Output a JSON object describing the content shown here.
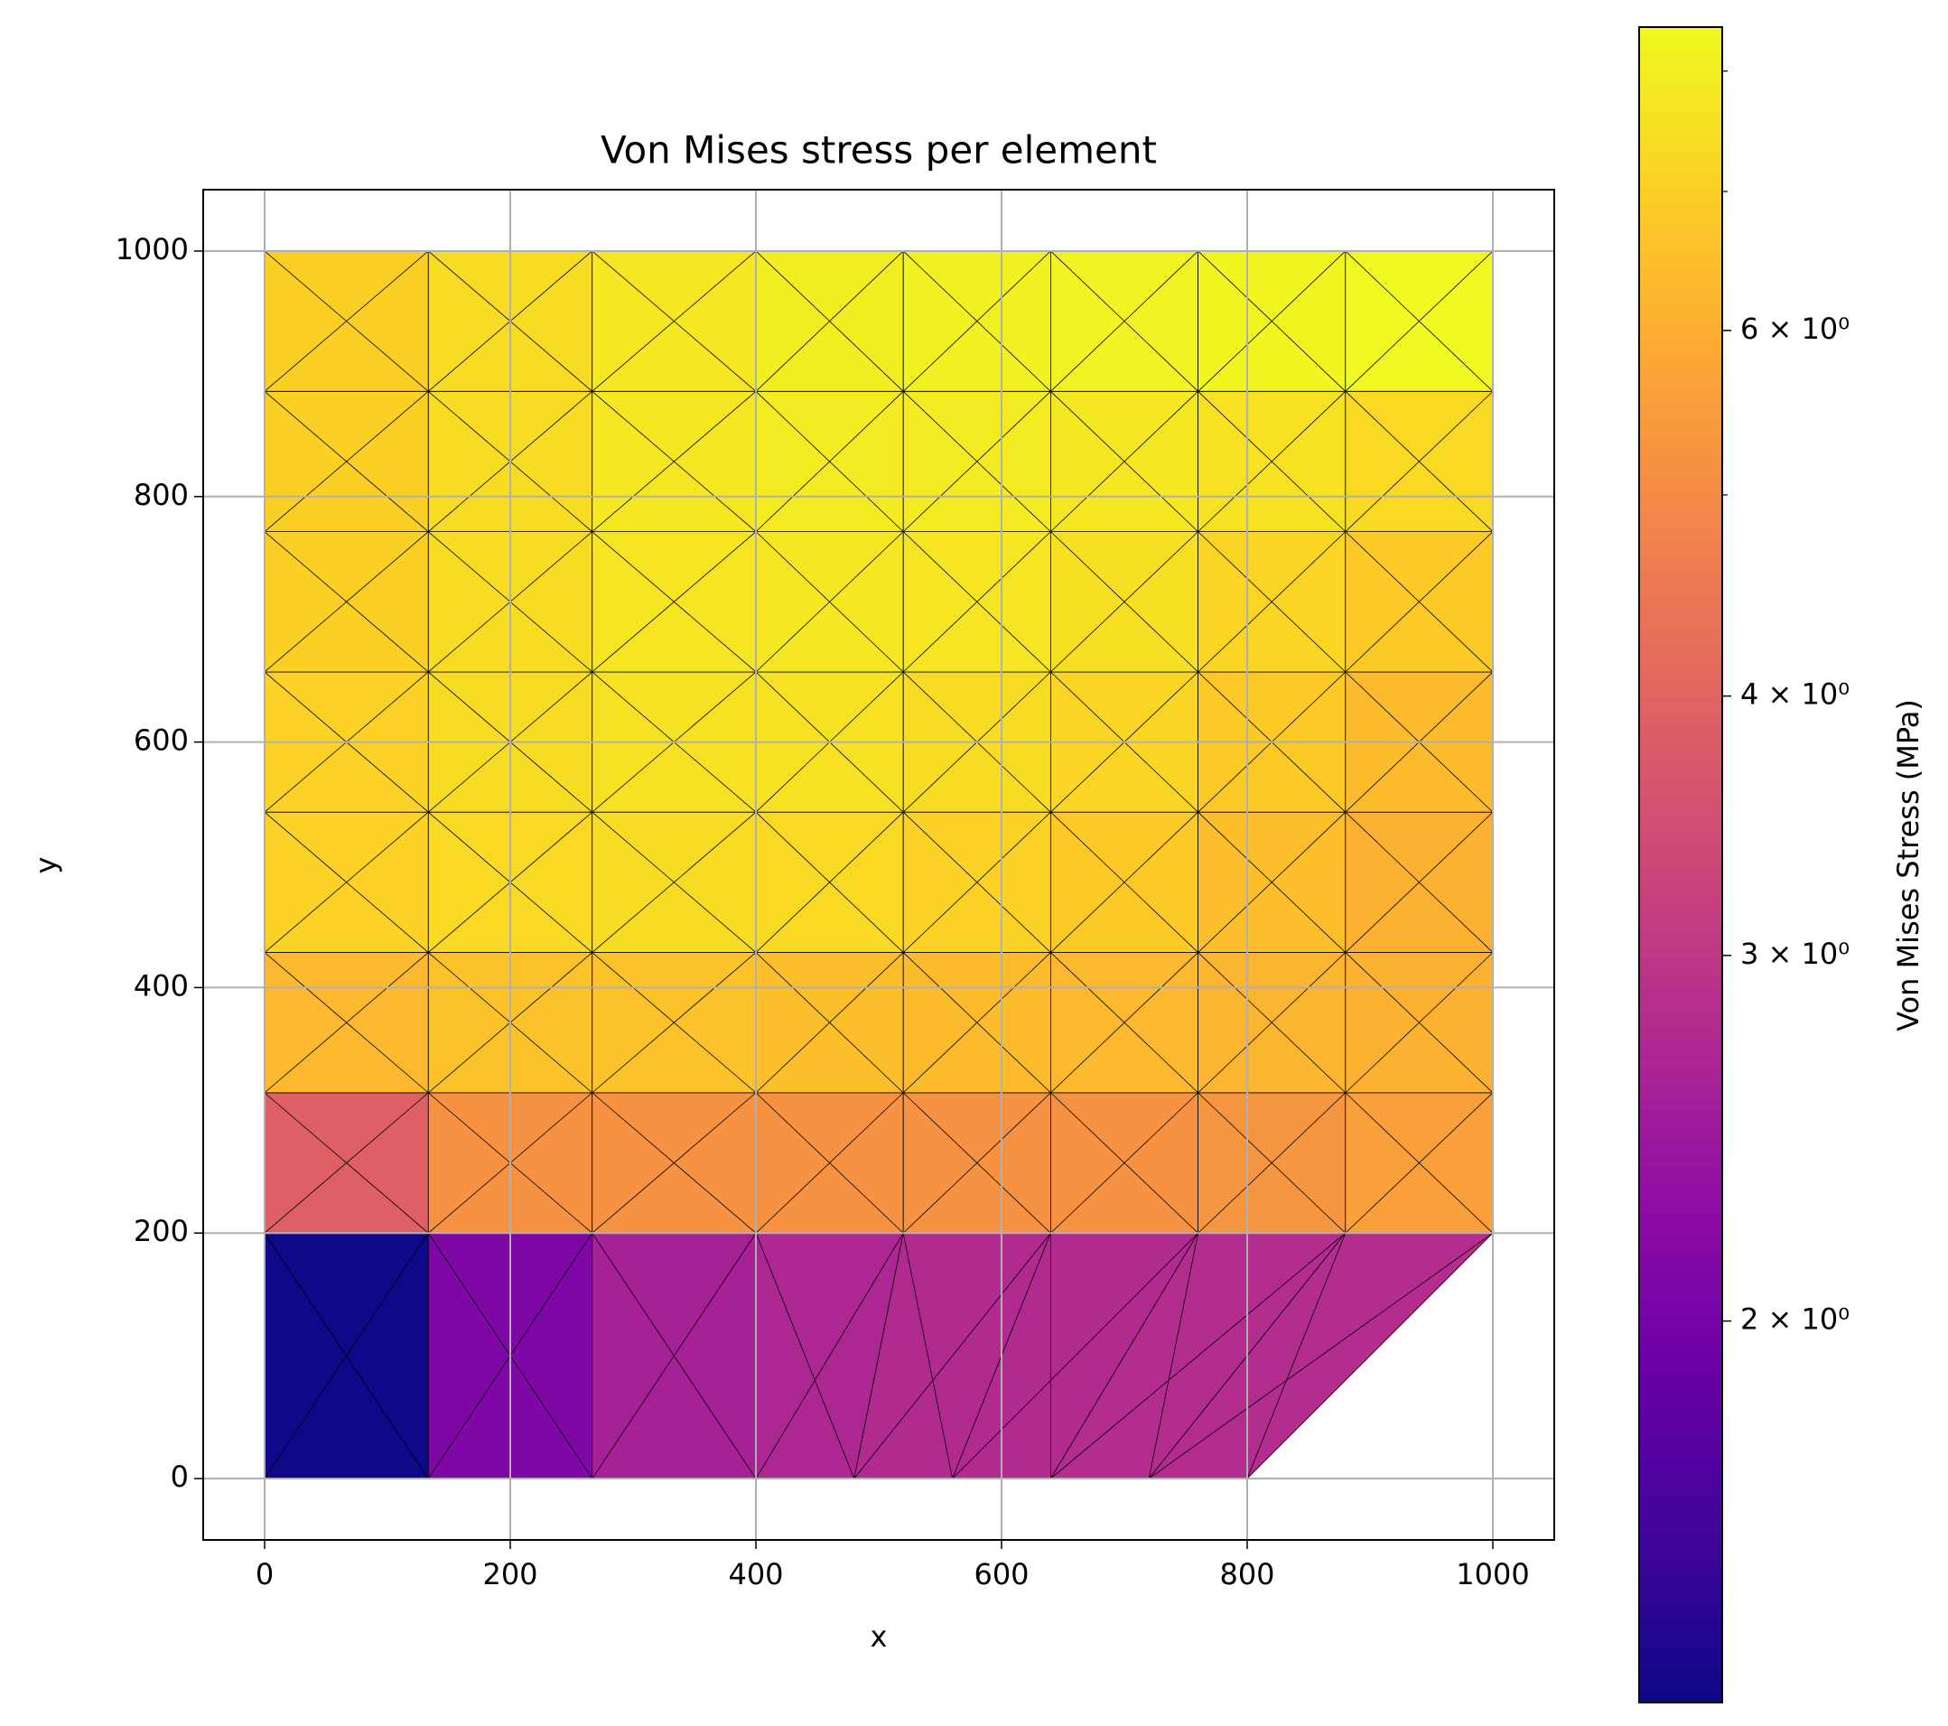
{
  "chart_data": {
    "type": "tripcolor",
    "title": "Von Mises stress per element",
    "xlabel": "x",
    "ylabel": "y",
    "xlim": [
      -50,
      1050
    ],
    "ylim": [
      -50,
      1050
    ],
    "xticks": [
      0,
      200,
      400,
      600,
      800,
      1000
    ],
    "yticks": [
      0,
      200,
      400,
      600,
      800,
      1000
    ],
    "grid": true,
    "colormap": "plasma",
    "x_edges": [
      0,
      133.3,
      266.7,
      400,
      520,
      640,
      760,
      880,
      1000
    ],
    "y_edges": [
      200,
      314.3,
      428.6,
      542.9,
      657.1,
      771.4,
      885.7,
      1000
    ],
    "values": [
      [
        3.9,
        5.2,
        5.2,
        5.2,
        5.2,
        5.2,
        5.3,
        5.6
      ],
      [
        6.3,
        6.6,
        6.6,
        6.5,
        6.4,
        6.3,
        6.2,
        6.1
      ],
      [
        7.1,
        7.3,
        7.4,
        7.3,
        7.1,
        6.8,
        6.5,
        6.1
      ],
      [
        7.1,
        7.4,
        7.6,
        7.6,
        7.4,
        7.2,
        6.8,
        6.4
      ],
      [
        7.0,
        7.4,
        7.7,
        7.8,
        7.7,
        7.5,
        7.2,
        6.8
      ],
      [
        7.0,
        7.4,
        7.8,
        7.9,
        7.9,
        7.8,
        7.6,
        7.3
      ],
      [
        7.0,
        7.4,
        7.8,
        8.0,
        8.1,
        8.2,
        8.3,
        8.4
      ]
    ],
    "bottom_cells": [
      {
        "polygon": [
          [
            0,
            0
          ],
          [
            133.3,
            0
          ],
          [
            133.3,
            200
          ],
          [
            0,
            200
          ]
        ],
        "value": 1.32
      },
      {
        "polygon": [
          [
            133.3,
            0
          ],
          [
            266.7,
            0
          ],
          [
            266.7,
            200
          ],
          [
            133.3,
            200
          ]
        ],
        "value": 2.1
      },
      {
        "polygon": [
          [
            266.7,
            0
          ],
          [
            400,
            0
          ],
          [
            400,
            200
          ],
          [
            266.7,
            200
          ]
        ],
        "value": 2.6
      },
      {
        "polygon": [
          [
            400,
            0
          ],
          [
            480,
            0
          ],
          [
            520,
            200
          ],
          [
            400,
            200
          ]
        ],
        "value": 2.7
      },
      {
        "polygon": [
          [
            480,
            0
          ],
          [
            560,
            0
          ],
          [
            640,
            200
          ],
          [
            520,
            200
          ]
        ],
        "value": 2.75
      },
      {
        "polygon": [
          [
            560,
            0
          ],
          [
            640,
            0
          ],
          [
            760,
            200
          ],
          [
            640,
            200
          ]
        ],
        "value": 2.75
      },
      {
        "polygon": [
          [
            640,
            0
          ],
          [
            720,
            0
          ],
          [
            880,
            200
          ],
          [
            760,
            200
          ]
        ],
        "value": 2.8
      },
      {
        "polygon": [
          [
            720,
            0
          ],
          [
            800,
            0
          ],
          [
            1000,
            200
          ],
          [
            880,
            200
          ]
        ],
        "value": 2.8
      }
    ],
    "colorbar": {
      "label": "Von Mises Stress (MPa)",
      "scale": "log",
      "lim": [
        1.31,
        8.4
      ],
      "ticks": [
        {
          "value": 2,
          "label": "2 × 10⁰"
        },
        {
          "value": 3,
          "label": "3 × 10⁰"
        },
        {
          "value": 4,
          "label": "4 × 10⁰"
        },
        {
          "value": 6,
          "label": "6 × 10⁰"
        }
      ],
      "minor_ticks": [
        5,
        7,
        8
      ]
    }
  }
}
